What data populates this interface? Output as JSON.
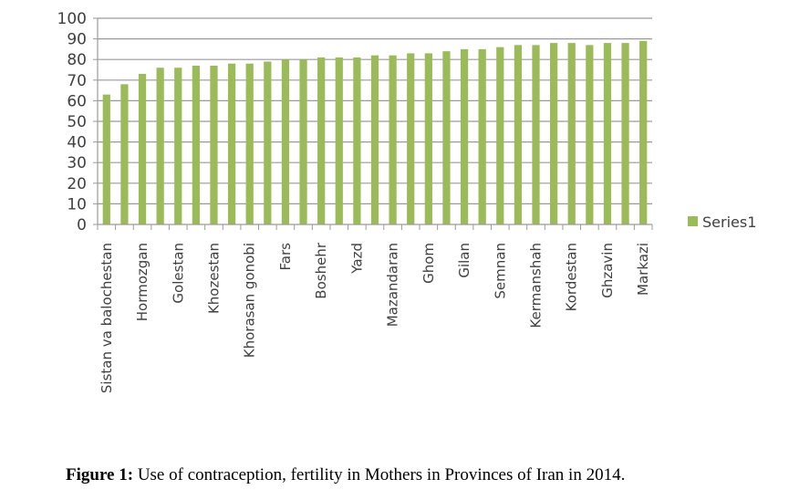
{
  "chart_data": {
    "type": "bar",
    "title": "",
    "xlabel": "",
    "ylabel": "",
    "ylim": [
      0,
      100
    ],
    "yticks": [
      0,
      10,
      20,
      30,
      40,
      50,
      60,
      70,
      80,
      90,
      100
    ],
    "grid": true,
    "legend_position": "right",
    "bar_color": "#9BBB59",
    "categories": [
      "Sistan va balochestan",
      "",
      "Hormozgan",
      "",
      "Golestan",
      "",
      "Khozestan",
      "",
      "Khorasan gonobi",
      "",
      "Fars",
      "",
      "Boshehr",
      "",
      "Yazd",
      "",
      "Mazandaran",
      "",
      "Ghom",
      "",
      "Gilan",
      "",
      "Semnan",
      "",
      "Kermanshah",
      "",
      "Kordestan",
      "",
      "Ghzavin",
      "",
      "Markazi"
    ],
    "series": [
      {
        "name": "Series1",
        "values": [
          63,
          68,
          73,
          76,
          76,
          77,
          77,
          78,
          78,
          79,
          80,
          80,
          81,
          81,
          81,
          82,
          82,
          83,
          83,
          84,
          85,
          85,
          86,
          87,
          87,
          88,
          88,
          87,
          88,
          88,
          89
        ]
      }
    ]
  },
  "caption": {
    "label": "Figure 1:",
    "text": " Use of contraception, fertility in Mothers in Provinces of Iran in 2014."
  }
}
